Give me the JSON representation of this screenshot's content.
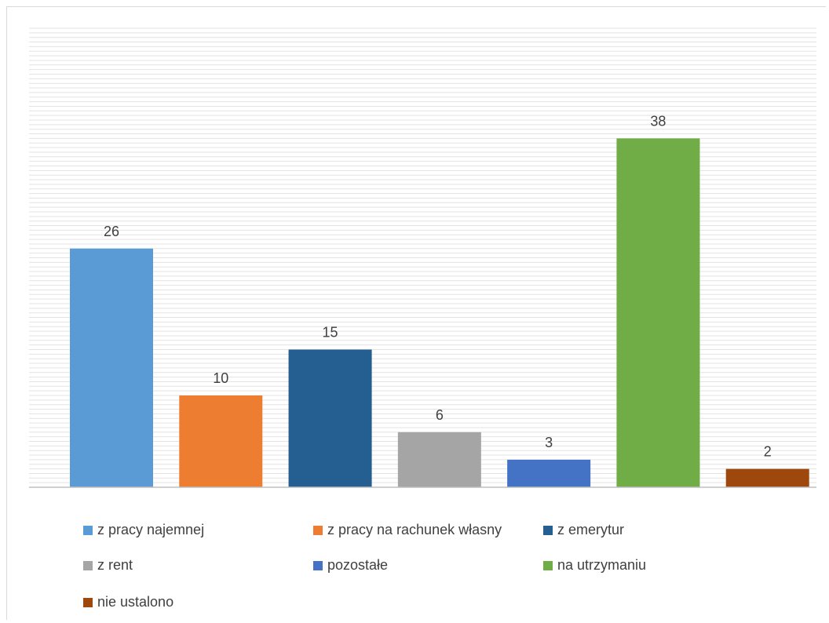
{
  "chart_data": {
    "type": "bar",
    "categories": [
      "z pracy najemnej",
      "z pracy na rachunek własny",
      "z emerytur",
      "z rent",
      "pozostałe",
      "na utrzymaniu",
      "nie ustalono"
    ],
    "values": [
      26,
      10,
      15,
      6,
      3,
      38,
      2
    ],
    "colors": [
      "#5b9bd5",
      "#ed7d31",
      "#255e91",
      "#a5a5a5",
      "#4472c4",
      "#70ad47",
      "#9e480e"
    ],
    "title": "",
    "xlabel": "",
    "ylabel": "",
    "ylim": [
      0,
      50
    ],
    "grid": true,
    "legend_position": "bottom",
    "data_labels": true
  }
}
